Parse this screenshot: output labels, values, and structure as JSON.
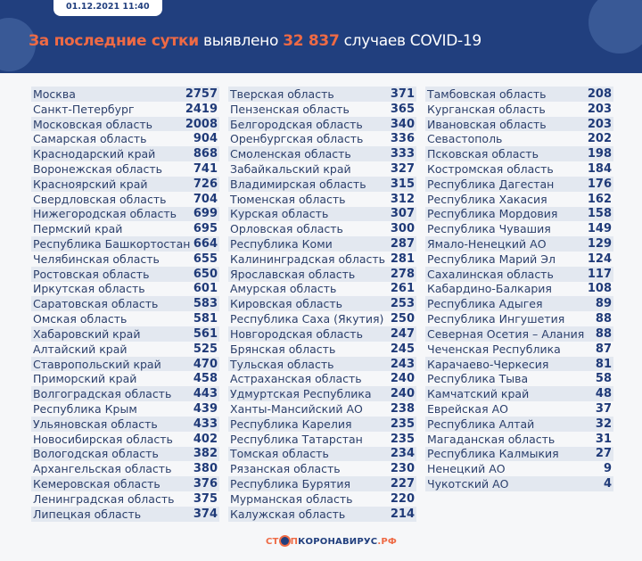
{
  "header": {
    "date": "01.12.2021 11:40",
    "title_highlight": "За последние сутки",
    "title_mid": "выявлено",
    "count": "32 837",
    "title_end": "случаев COVID-19"
  },
  "columns": [
    [
      [
        "Москва",
        "2757"
      ],
      [
        "Санкт-Петербург",
        "2419"
      ],
      [
        "Московская область",
        "2008"
      ],
      [
        "Самарская область",
        "904"
      ],
      [
        "Краснодарский край",
        "868"
      ],
      [
        "Воронежская область",
        "741"
      ],
      [
        "Красноярский край",
        "726"
      ],
      [
        "Свердловская область",
        "704"
      ],
      [
        "Нижегородская область",
        "699"
      ],
      [
        "Пермский край",
        "695"
      ],
      [
        "Республика Башкортостан",
        "664"
      ],
      [
        "Челябинская область",
        "655"
      ],
      [
        "Ростовская область",
        "650"
      ],
      [
        "Иркутская область",
        "601"
      ],
      [
        "Саратовская область",
        "583"
      ],
      [
        "Омская область",
        "581"
      ],
      [
        "Хабаровский край",
        "561"
      ],
      [
        "Алтайский край",
        "525"
      ],
      [
        "Ставропольский край",
        "470"
      ],
      [
        "Приморский край",
        "458"
      ],
      [
        "Волгоградская область",
        "443"
      ],
      [
        "Республика Крым",
        "439"
      ],
      [
        "Ульяновская область",
        "433"
      ],
      [
        "Новосибирская область",
        "402"
      ],
      [
        "Вологодская область",
        "382"
      ],
      [
        "Архангельская область",
        "380"
      ],
      [
        "Кемеровская область",
        "376"
      ],
      [
        "Ленинградская область",
        "375"
      ],
      [
        "Липецкая область",
        "374"
      ]
    ],
    [
      [
        "Тверская область",
        "371"
      ],
      [
        "Пензенская область",
        "365"
      ],
      [
        "Белгородская область",
        "340"
      ],
      [
        "Оренбургская область",
        "336"
      ],
      [
        "Смоленская область",
        "333"
      ],
      [
        "Забайкальский край",
        "327"
      ],
      [
        "Владимирская область",
        "315"
      ],
      [
        "Тюменская область",
        "312"
      ],
      [
        "Курская область",
        "307"
      ],
      [
        "Орловская область",
        "300"
      ],
      [
        "Республика Коми",
        "287"
      ],
      [
        "Калининградская область",
        "281"
      ],
      [
        "Ярославская область",
        "278"
      ],
      [
        "Амурская область",
        "261"
      ],
      [
        "Кировская область",
        "253"
      ],
      [
        "Республика Саха (Якутия)",
        "250"
      ],
      [
        "Новгородская область",
        "247"
      ],
      [
        "Брянская область",
        "245"
      ],
      [
        "Тульская область",
        "243"
      ],
      [
        "Астраханская область",
        "240"
      ],
      [
        "Удмуртская Республика",
        "240"
      ],
      [
        "Ханты-Мансийский АО",
        "238"
      ],
      [
        "Республика Карелия",
        "235"
      ],
      [
        "Республика Татарстан",
        "235"
      ],
      [
        "Томская область",
        "234"
      ],
      [
        "Рязанская область",
        "230"
      ],
      [
        "Республика Бурятия",
        "227"
      ],
      [
        "Мурманская область",
        "220"
      ],
      [
        "Калужская область",
        "214"
      ]
    ],
    [
      [
        "Тамбовская область",
        "208"
      ],
      [
        "Курганская область",
        "203"
      ],
      [
        "Ивановская область",
        "203"
      ],
      [
        "Севастополь",
        "202"
      ],
      [
        "Псковская область",
        "198"
      ],
      [
        "Костромская область",
        "184"
      ],
      [
        "Республика Дагестан",
        "176"
      ],
      [
        "Республика Хакасия",
        "162"
      ],
      [
        "Республика Мордовия",
        "158"
      ],
      [
        "Республика Чувашия",
        "149"
      ],
      [
        "Ямало-Ненецкий АО",
        "129"
      ],
      [
        "Республика Марий Эл",
        "124"
      ],
      [
        "Сахалинская область",
        "117"
      ],
      [
        "Кабардино-Балкария",
        "108"
      ],
      [
        "Республика Адыгея",
        "89"
      ],
      [
        "Республика Ингушетия",
        "88"
      ],
      [
        "Северная Осетия – Алания",
        "88"
      ],
      [
        "Чеченская Республика",
        "87"
      ],
      [
        "Карачаево-Черкесия",
        "81"
      ],
      [
        "Республика Тыва",
        "58"
      ],
      [
        "Камчатский край",
        "48"
      ],
      [
        "Еврейская АО",
        "37"
      ],
      [
        "Республика Алтай",
        "32"
      ],
      [
        "Магаданская область",
        "31"
      ],
      [
        "Республика Калмыкия",
        "27"
      ],
      [
        "Ненецкий АО",
        "9"
      ],
      [
        "Чукотский АО",
        "4"
      ]
    ]
  ],
  "footer": {
    "logo_a": "СТ",
    "logo_b": "П",
    "logo_c": "КОРОНАВИРУС",
    "logo_d": ".РФ"
  }
}
